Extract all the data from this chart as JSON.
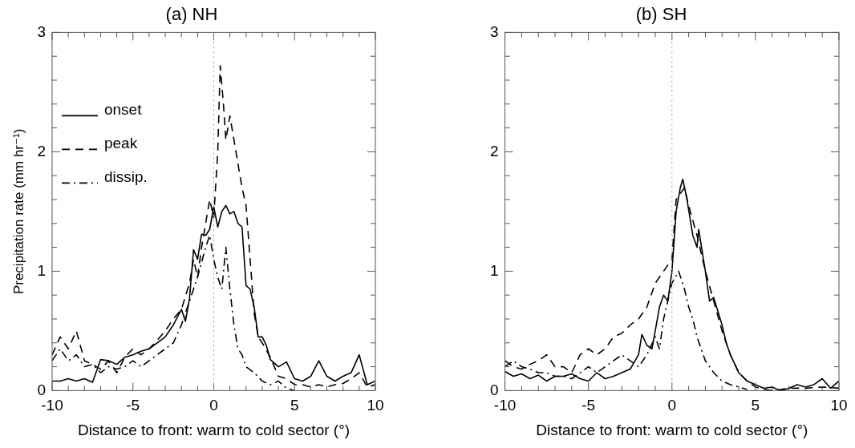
{
  "chart_data": [
    {
      "type": "line",
      "title": "(a) NH",
      "xlabel": "Distance to front: warm to cold sector (°)",
      "ylabel": "Precipitation rate (mm hr⁻¹)",
      "legend": "top left",
      "xlim": [
        -10,
        10
      ],
      "ylim": [
        0,
        3
      ],
      "xticks": [
        -10,
        {
          "value": -9,
          "label": null
        },
        {
          "value": -8,
          "label": null
        },
        {
          "value": -7,
          "label": null
        },
        {
          "value": -6,
          "label": null
        },
        -5,
        {
          "value": -4,
          "label": null
        },
        {
          "value": -3,
          "label": null
        },
        {
          "value": -2,
          "label": null
        },
        {
          "value": -1,
          "label": null
        },
        0,
        {
          "value": 1,
          "label": null
        },
        {
          "value": 2,
          "label": null
        },
        {
          "value": 3,
          "label": null
        },
        {
          "value": 4,
          "label": null
        },
        5,
        {
          "value": 6,
          "label": null
        },
        {
          "value": 7,
          "label": null
        },
        {
          "value": 8,
          "label": null
        },
        {
          "value": 9,
          "label": null
        },
        10
      ],
      "yticks": [
        0,
        {
          "value": 0.2,
          "label": null
        },
        {
          "value": 0.4,
          "label": null
        },
        {
          "value": 0.6,
          "label": null
        },
        {
          "value": 0.8,
          "label": null
        },
        1,
        {
          "value": 1.2,
          "label": null
        },
        {
          "value": 1.4,
          "label": null
        },
        {
          "value": 1.6,
          "label": null
        },
        {
          "value": 1.8,
          "label": null
        },
        2,
        {
          "value": 2.2,
          "label": null
        },
        {
          "value": 2.4,
          "label": null
        },
        {
          "value": 2.6,
          "label": null
        },
        {
          "value": 2.8,
          "label": null
        },
        3
      ],
      "ref_lines": [
        {
          "axis": "x",
          "value": 0,
          "color": "#999999",
          "line_style": "dotted"
        }
      ],
      "series": [
        {
          "name": "onset",
          "color": "#000000",
          "line_style": "solid",
          "x": [
            -10,
            -9.5,
            -9,
            -8.5,
            -8,
            -7.5,
            -7,
            -6.5,
            -6,
            -5.5,
            -5,
            -4.5,
            -4,
            -3.5,
            -3,
            -2.5,
            -2,
            -1.75,
            -1.5,
            -1.25,
            -1,
            -0.75,
            -0.5,
            -0.25,
            0,
            0.25,
            0.5,
            0.75,
            1,
            1.25,
            1.5,
            1.75,
            2,
            2.25,
            2.5,
            2.75,
            3,
            3.25,
            3.5,
            4,
            4.5,
            5,
            5.5,
            6,
            6.5,
            7,
            7.5,
            8,
            8.5,
            9,
            9.5,
            10
          ],
          "values": [
            0.08,
            0.08,
            0.1,
            0.08,
            0.1,
            0.07,
            0.26,
            0.25,
            0.22,
            0.28,
            0.3,
            0.33,
            0.35,
            0.4,
            0.45,
            0.55,
            0.68,
            0.58,
            0.77,
            1.18,
            1.1,
            1.31,
            1.3,
            1.35,
            1.54,
            1.37,
            1.5,
            1.55,
            1.48,
            1.5,
            1.4,
            1.37,
            0.88,
            0.85,
            0.7,
            0.45,
            0.45,
            0.38,
            0.26,
            0.2,
            0.24,
            0.1,
            0.08,
            0.12,
            0.25,
            0.12,
            0.08,
            0.12,
            0.15,
            0.3,
            0.05,
            0.08
          ]
        },
        {
          "name": "peak",
          "color": "#000000",
          "line_style": "dashed",
          "x": [
            -10,
            -9.5,
            -9,
            -8.5,
            -8,
            -7.5,
            -7,
            -6.5,
            -6,
            -5.5,
            -5,
            -4.5,
            -4,
            -3.5,
            -3,
            -2.5,
            -2,
            -1.5,
            -1.25,
            -1,
            -0.75,
            -0.5,
            -0.25,
            0,
            0.25,
            0.4,
            0.6,
            0.75,
            1,
            1.25,
            1.5,
            1.75,
            2,
            2.25,
            2.5,
            2.75,
            3,
            3.5,
            4,
            4.5,
            5,
            5.5,
            6,
            6.5,
            7,
            7.5,
            8,
            8.5,
            9,
            9.5,
            10
          ],
          "values": [
            0.3,
            0.45,
            0.35,
            0.5,
            0.25,
            0.22,
            0.18,
            0.25,
            0.15,
            0.28,
            0.35,
            0.3,
            0.35,
            0.42,
            0.5,
            0.6,
            0.68,
            0.9,
            1.1,
            0.95,
            1.2,
            1.4,
            1.6,
            1.45,
            2.0,
            2.72,
            2.4,
            2.1,
            2.3,
            2.1,
            1.9,
            1.7,
            1.55,
            1.1,
            0.65,
            0.45,
            0.4,
            0.28,
            0.12,
            0.1,
            0.05,
            0.05,
            0.03,
            0.05,
            0.03,
            0.05,
            0.06,
            0.1,
            0.15,
            0.03,
            0.05
          ]
        },
        {
          "name": "dissip.",
          "color": "#000000",
          "line_style": "dashdot",
          "x": [
            -10,
            -9.5,
            -9,
            -8.5,
            -8,
            -7.5,
            -7,
            -6.5,
            -6,
            -5.5,
            -5,
            -4.5,
            -4,
            -3.5,
            -3,
            -2.5,
            -2,
            -1.5,
            -1,
            -0.5,
            -0.25,
            0,
            0.25,
            0.5,
            0.75,
            1,
            1.25,
            1.5,
            1.75,
            2,
            2.5,
            3,
            3.5,
            4,
            4.5,
            5
          ],
          "values": [
            0.25,
            0.35,
            0.25,
            0.3,
            0.2,
            0.22,
            0.15,
            0.2,
            0.18,
            0.2,
            0.25,
            0.2,
            0.25,
            0.3,
            0.35,
            0.4,
            0.55,
            0.75,
            0.95,
            1.2,
            1.3,
            1.1,
            0.95,
            0.85,
            1.2,
            0.85,
            0.55,
            0.35,
            0.3,
            0.2,
            0.15,
            0.08,
            0.05,
            0.08,
            0.02,
            0
          ]
        }
      ]
    },
    {
      "type": "line",
      "title": "(b) SH",
      "xlabel": "Distance to front: warm to cold sector (°)",
      "xlim": [
        -10,
        10
      ],
      "ylim": [
        0,
        3
      ],
      "xticks": [
        -10,
        {
          "value": -9,
          "label": null
        },
        {
          "value": -8,
          "label": null
        },
        {
          "value": -7,
          "label": null
        },
        {
          "value": -6,
          "label": null
        },
        -5,
        {
          "value": -4,
          "label": null
        },
        {
          "value": -3,
          "label": null
        },
        {
          "value": -2,
          "label": null
        },
        {
          "value": -1,
          "label": null
        },
        0,
        {
          "value": 1,
          "label": null
        },
        {
          "value": 2,
          "label": null
        },
        {
          "value": 3,
          "label": null
        },
        {
          "value": 4,
          "label": null
        },
        5,
        {
          "value": 6,
          "label": null
        },
        {
          "value": 7,
          "label": null
        },
        {
          "value": 8,
          "label": null
        },
        {
          "value": 9,
          "label": null
        },
        10
      ],
      "yticks": [
        0,
        {
          "value": 0.2,
          "label": null
        },
        {
          "value": 0.4,
          "label": null
        },
        {
          "value": 0.6,
          "label": null
        },
        {
          "value": 0.8,
          "label": null
        },
        1,
        {
          "value": 1.2,
          "label": null
        },
        {
          "value": 1.4,
          "label": null
        },
        {
          "value": 1.6,
          "label": null
        },
        {
          "value": 1.8,
          "label": null
        },
        2,
        {
          "value": 2.2,
          "label": null
        },
        {
          "value": 2.4,
          "label": null
        },
        {
          "value": 2.6,
          "label": null
        },
        {
          "value": 2.8,
          "label": null
        },
        3
      ],
      "ref_lines": [
        {
          "axis": "x",
          "value": 0,
          "color": "#999999",
          "line_style": "dotted"
        }
      ],
      "series": [
        {
          "color": "#000000",
          "line_style": "solid",
          "x": [
            -10,
            -9.5,
            -9,
            -8.5,
            -8,
            -7.5,
            -7,
            -6.5,
            -6,
            -5.5,
            -5,
            -4.5,
            -4,
            -3.5,
            -3,
            -2.5,
            -2,
            -1.8,
            -1.5,
            -1.2,
            -1,
            -0.75,
            -0.5,
            -0.25,
            0,
            0.25,
            0.5,
            0.65,
            0.9,
            1.25,
            1.5,
            1.6,
            2,
            2.25,
            2.5,
            3,
            3.25,
            3.5,
            4,
            4.5,
            5,
            5.5,
            6,
            6.5,
            7,
            7.5,
            8,
            8.5,
            9,
            9.5,
            10
          ],
          "values": [
            0.16,
            0.12,
            0.14,
            0.1,
            0.13,
            0.08,
            0.12,
            0.12,
            0.14,
            0.1,
            0.08,
            0.15,
            0.1,
            0.12,
            0.15,
            0.18,
            0.3,
            0.47,
            0.38,
            0.35,
            0.5,
            0.7,
            0.8,
            0.75,
            1.0,
            1.5,
            1.7,
            1.77,
            1.6,
            1.3,
            1.2,
            1.35,
            1.0,
            0.75,
            0.78,
            0.55,
            0.4,
            0.3,
            0.15,
            0.08,
            0.05,
            0.02,
            0.03,
            0,
            0.02,
            0.05,
            0.03,
            0.05,
            0.1,
            0.02,
            0.08
          ]
        },
        {
          "color": "#000000",
          "line_style": "dashed",
          "x": [
            -10,
            -9.5,
            -9,
            -8.5,
            -8,
            -7.5,
            -7,
            -6.5,
            -6,
            -5.5,
            -5,
            -4.5,
            -4,
            -3.5,
            -3,
            -2.5,
            -2,
            -1.5,
            -1,
            -0.5,
            0,
            0.25,
            0.5,
            0.75,
            1,
            1.5,
            2,
            2.5,
            3,
            3.5,
            4,
            4.5,
            5,
            5.5,
            6,
            7,
            8,
            9,
            10
          ],
          "values": [
            0.25,
            0.2,
            0.18,
            0.22,
            0.25,
            0.3,
            0.2,
            0.2,
            0.15,
            0.3,
            0.35,
            0.3,
            0.35,
            0.45,
            0.48,
            0.55,
            0.6,
            0.7,
            0.9,
            1.0,
            1.1,
            1.6,
            1.65,
            1.7,
            1.55,
            1.3,
            1.0,
            0.75,
            0.5,
            0.3,
            0.15,
            0.08,
            0.03,
            0.01,
            0,
            0.02,
            0.02,
            0.03,
            0.02
          ]
        },
        {
          "color": "#000000",
          "line_style": "dashdot",
          "x": [
            -10,
            -9.5,
            -9,
            -8.5,
            -8,
            -7.5,
            -7,
            -6.5,
            -6,
            -5.5,
            -5,
            -4.5,
            -4,
            -3.5,
            -3,
            -2.5,
            -2,
            -1.5,
            -1,
            -0.75,
            -0.5,
            -0.25,
            0,
            0.4,
            0.75,
            1,
            1.25,
            1.5,
            2,
            2.5,
            3,
            3.5,
            4,
            4.5
          ],
          "values": [
            0.2,
            0.25,
            0.2,
            0.18,
            0.15,
            0.15,
            0.12,
            0.12,
            0.1,
            0.15,
            0.2,
            0.15,
            0.2,
            0.25,
            0.3,
            0.25,
            0.2,
            0.3,
            0.45,
            0.35,
            0.6,
            0.75,
            0.9,
            1.0,
            0.85,
            0.7,
            0.6,
            0.45,
            0.25,
            0.15,
            0.08,
            0.05,
            0.03,
            0.01
          ]
        }
      ]
    }
  ]
}
